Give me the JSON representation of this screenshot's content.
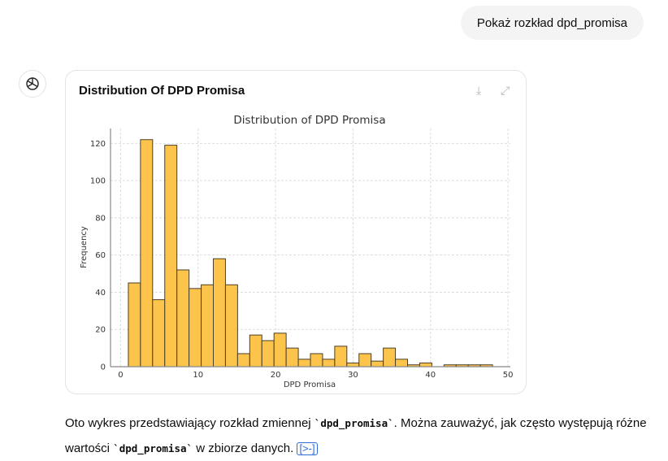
{
  "user_message": "Pokaż rozkład dpd_promisa",
  "card": {
    "title": "Distribution Of DPD Promisa",
    "download_icon": "download-icon",
    "expand_icon": "expand-icon"
  },
  "assistant": {
    "text_before": "Oto wykres przedstawiający rozkład zmiennej ",
    "code1": "`dpd_promisa`",
    "text_mid": ". Można zauważyć, jak często występują różne wartości ",
    "code2": "`dpd_promisa`",
    "text_after": " w zbiorze danych. ",
    "citation": "[>-]"
  },
  "chart_data": {
    "type": "bar",
    "title": "Distribution of DPD Promisa",
    "xlabel": "DPD Promisa",
    "ylabel": "Frequency",
    "bin_start": 1,
    "bin_width": 1.5667,
    "values": [
      45,
      122,
      36,
      119,
      52,
      42,
      44,
      58,
      44,
      7,
      17,
      14,
      18,
      10,
      4,
      7,
      4,
      11,
      2,
      7,
      3,
      10,
      4,
      1,
      2,
      0,
      1,
      1,
      1,
      1
    ],
    "xlim": [
      -1.3,
      50.3
    ],
    "ylim": [
      0,
      128
    ],
    "xticks": [
      0,
      10,
      20,
      30,
      40,
      50
    ],
    "yticks": [
      0,
      20,
      40,
      60,
      80,
      100,
      120
    ],
    "grid": true,
    "bar_color": "#fdc44c",
    "edge_color": "#4a3f2a"
  }
}
